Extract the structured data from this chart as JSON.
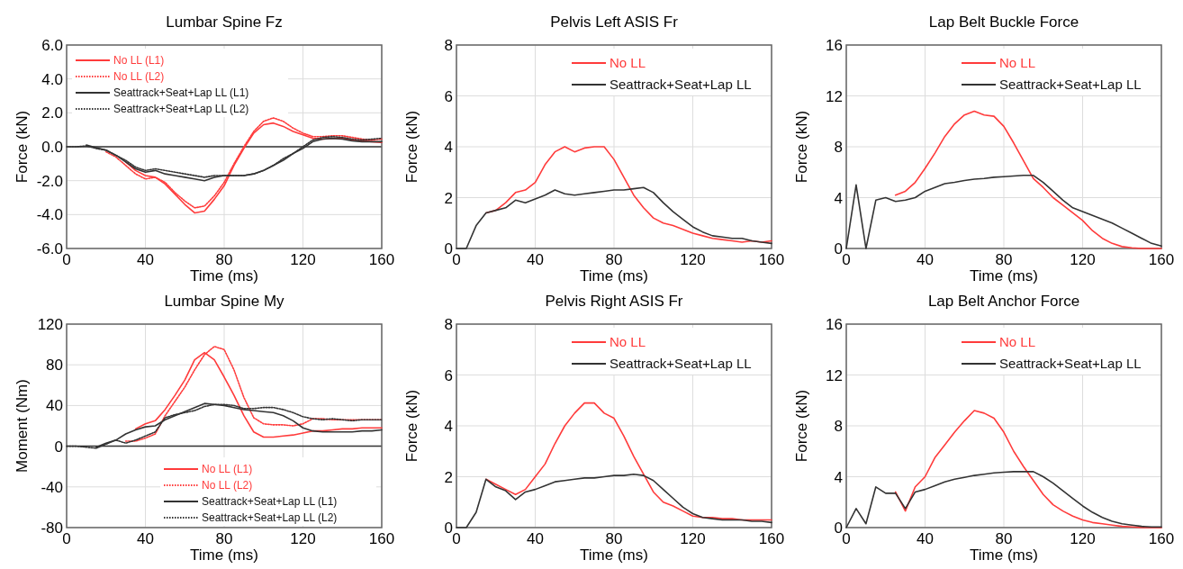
{
  "chart_data": [
    {
      "type": "line",
      "title": "Lumbar Spine Fz",
      "xlabel": "Time (ms)",
      "ylabel": "Force (kN)",
      "x": [
        0,
        5,
        10,
        15,
        20,
        25,
        30,
        35,
        40,
        45,
        50,
        55,
        60,
        65,
        70,
        75,
        80,
        85,
        90,
        95,
        100,
        105,
        110,
        115,
        120,
        125,
        130,
        135,
        140,
        145,
        150,
        155,
        160
      ],
      "xlim": [
        0,
        160
      ],
      "xticks": [
        0,
        40,
        80,
        120,
        160
      ],
      "ylim": [
        -6,
        6
      ],
      "yticks": [
        {
          "value": -6,
          "label": "-6.0"
        },
        {
          "value": -4,
          "label": "-4.0"
        },
        {
          "value": -2,
          "label": "-2.0"
        },
        {
          "value": 0,
          "label": "0.0"
        },
        {
          "value": 2,
          "label": "2.0"
        },
        {
          "value": 4,
          "label": "4.0"
        },
        {
          "value": 6,
          "label": "6.0"
        }
      ],
      "grid": true,
      "legend": "top left",
      "ref_lines": [
        {
          "axis": "y",
          "value": 0,
          "color": "#333333"
        }
      ],
      "series": [
        {
          "name": "No LL (L1)",
          "color": "#ff3b3b",
          "line_style": "solid",
          "values": [
            null,
            null,
            null,
            null,
            null,
            null,
            -0.9,
            -1.4,
            -1.7,
            -1.8,
            -2.2,
            -2.8,
            -3.4,
            -3.9,
            -3.8,
            -3.1,
            -2.3,
            -1.1,
            -0.1,
            0.8,
            1.3,
            1.4,
            1.2,
            0.9,
            0.7,
            0.5,
            0.45,
            0.5,
            0.5,
            0.4,
            0.35,
            0.3,
            0.25
          ]
        },
        {
          "name": "No LL (L2)",
          "color": "#ff3b3b",
          "line_style": "dotted",
          "values": [
            null,
            null,
            null,
            null,
            -0.3,
            -0.6,
            -1.1,
            -1.6,
            -1.9,
            -1.8,
            -2.1,
            -2.7,
            -3.2,
            -3.6,
            -3.5,
            -2.9,
            -2.1,
            -1,
            0,
            0.9,
            1.5,
            1.7,
            1.5,
            1.1,
            0.8,
            0.6,
            0.6,
            0.65,
            0.65,
            0.55,
            0.45,
            0.4,
            0.45
          ]
        },
        {
          "name": "Seattrack+Seat+Lap LL (L1)",
          "color": "#333333",
          "line_style": "solid",
          "values": [
            null,
            null,
            0.1,
            -0.05,
            -0.2,
            -0.5,
            -0.9,
            -1.3,
            -1.5,
            -1.4,
            -1.6,
            -1.7,
            -1.8,
            -1.9,
            -2,
            -1.8,
            -1.7,
            -1.7,
            -1.7,
            -1.6,
            -1.4,
            -1.1,
            -0.8,
            -0.4,
            -0.1,
            0.3,
            0.45,
            0.5,
            0.45,
            0.35,
            0.3,
            0.3,
            0.3
          ]
        },
        {
          "name": "Seattrack+Seat+Lap LL (L2)",
          "color": "#333333",
          "line_style": "dotted",
          "values": [
            0,
            0,
            0.05,
            -0.1,
            -0.2,
            -0.5,
            -0.8,
            -1.2,
            -1.4,
            -1.3,
            -1.4,
            -1.5,
            -1.6,
            -1.7,
            -1.8,
            -1.7,
            -1.7,
            -1.7,
            -1.7,
            -1.6,
            -1.4,
            -1.1,
            -0.7,
            -0.4,
            0,
            0.4,
            0.55,
            0.6,
            0.55,
            0.45,
            0.4,
            0.45,
            0.5
          ]
        }
      ]
    },
    {
      "type": "line",
      "title": "Pelvis Left ASIS Fr",
      "xlabel": "Time (ms)",
      "ylabel": "Force (kN)",
      "x": [
        0,
        5,
        10,
        15,
        20,
        25,
        30,
        35,
        40,
        45,
        50,
        55,
        60,
        65,
        70,
        75,
        80,
        85,
        90,
        95,
        100,
        105,
        110,
        115,
        120,
        125,
        130,
        135,
        140,
        145,
        150,
        155,
        160
      ],
      "xlim": [
        0,
        160
      ],
      "xticks": [
        0,
        40,
        80,
        120,
        160
      ],
      "ylim": [
        0,
        8
      ],
      "yticks": [
        0,
        2,
        4,
        6,
        8
      ],
      "grid": true,
      "legend": "top right",
      "series": [
        {
          "name": "No LL",
          "color": "#ff3b3b",
          "line_style": "solid",
          "values": [
            null,
            null,
            null,
            1.4,
            1.5,
            1.8,
            2.2,
            2.3,
            2.6,
            3.3,
            3.8,
            4,
            3.8,
            3.95,
            4,
            4,
            3.5,
            2.8,
            2.1,
            1.6,
            1.2,
            1,
            0.9,
            0.75,
            0.6,
            0.5,
            0.4,
            0.35,
            0.3,
            0.25,
            0.3,
            0.25,
            0.3
          ]
        },
        {
          "name": "Seattrack+Seat+Lap LL",
          "color": "#333333",
          "line_style": "solid",
          "values": [
            0,
            0,
            0.9,
            1.4,
            1.5,
            1.6,
            1.9,
            1.8,
            1.95,
            2.1,
            2.3,
            2.15,
            2.1,
            2.15,
            2.2,
            2.25,
            2.3,
            2.3,
            2.35,
            2.4,
            2.2,
            1.8,
            1.45,
            1.15,
            0.85,
            0.65,
            0.5,
            0.45,
            0.4,
            0.4,
            0.3,
            0.25,
            0.2
          ]
        }
      ]
    },
    {
      "type": "line",
      "title": "Lap Belt Buckle Force",
      "xlabel": "Time (ms)",
      "ylabel": "Force (kN)",
      "x": [
        0,
        5,
        10,
        15,
        20,
        25,
        30,
        35,
        40,
        45,
        50,
        55,
        60,
        65,
        70,
        75,
        80,
        85,
        90,
        95,
        100,
        105,
        110,
        115,
        120,
        125,
        130,
        135,
        140,
        145,
        150,
        155,
        160
      ],
      "xlim": [
        0,
        160
      ],
      "xticks": [
        0,
        40,
        80,
        120,
        160
      ],
      "ylim": [
        0,
        16
      ],
      "yticks": [
        0,
        4,
        8,
        12,
        16
      ],
      "grid": true,
      "legend": "top right",
      "series": [
        {
          "name": "No LL",
          "color": "#ff3b3b",
          "line_style": "solid",
          "values": [
            null,
            null,
            null,
            null,
            null,
            4.2,
            4.5,
            5.2,
            6.3,
            7.5,
            8.8,
            9.8,
            10.5,
            10.8,
            10.5,
            10.4,
            9.6,
            8.3,
            6.9,
            5.5,
            4.8,
            4,
            3.4,
            2.8,
            2.2,
            1.4,
            0.8,
            0.4,
            0.15,
            0.05,
            0,
            0,
            0
          ]
        },
        {
          "name": "Seattrack+Seat+Lap LL",
          "color": "#333333",
          "line_style": "solid",
          "values": [
            0,
            5,
            0,
            3.8,
            4,
            3.7,
            3.8,
            4,
            4.5,
            4.8,
            5.1,
            5.2,
            5.35,
            5.45,
            5.5,
            5.6,
            5.65,
            5.7,
            5.75,
            5.75,
            5.2,
            4.5,
            3.8,
            3.2,
            2.9,
            2.6,
            2.3,
            2,
            1.6,
            1.2,
            0.8,
            0.4,
            0.2
          ]
        }
      ]
    },
    {
      "type": "line",
      "title": "Lumbar Spine My",
      "xlabel": "Time (ms)",
      "ylabel": "Moment (Nm)",
      "x": [
        0,
        5,
        10,
        15,
        20,
        25,
        30,
        35,
        40,
        45,
        50,
        55,
        60,
        65,
        70,
        75,
        80,
        85,
        90,
        95,
        100,
        105,
        110,
        115,
        120,
        125,
        130,
        135,
        140,
        145,
        150,
        155,
        160
      ],
      "xlim": [
        0,
        160
      ],
      "xticks": [
        0,
        40,
        80,
        120,
        160
      ],
      "ylim": [
        -80,
        120
      ],
      "yticks": [
        -80,
        -40,
        0,
        40,
        80,
        120
      ],
      "grid": true,
      "legend": "bottom right",
      "ref_lines": [
        {
          "axis": "y",
          "value": 0,
          "color": "#333333"
        }
      ],
      "series": [
        {
          "name": "No LL (L1)",
          "color": "#ff3b3b",
          "line_style": "solid",
          "values": [
            null,
            null,
            null,
            null,
            null,
            null,
            null,
            17,
            22,
            25,
            36,
            50,
            65,
            85,
            92,
            85,
            68,
            50,
            30,
            14,
            9,
            9,
            10,
            11,
            13,
            15,
            15,
            16,
            17,
            17,
            18,
            18,
            18
          ]
        },
        {
          "name": "No LL (L2)",
          "color": "#ff3b3b",
          "line_style": "dotted",
          "values": [
            null,
            null,
            null,
            null,
            null,
            null,
            5,
            5,
            8,
            12,
            30,
            44,
            58,
            75,
            90,
            98,
            95,
            75,
            48,
            28,
            22,
            21,
            21,
            20,
            22,
            27,
            27,
            26,
            26,
            26,
            26,
            26,
            26
          ]
        },
        {
          "name": "Seattrack+Seat+Lap LL (L1)",
          "color": "#333333",
          "line_style": "solid",
          "values": [
            null,
            null,
            null,
            -1,
            3,
            6,
            12,
            16,
            19,
            20,
            26,
            30,
            34,
            38,
            42,
            41,
            40,
            38,
            36,
            35,
            34,
            33,
            30,
            25,
            18,
            15,
            14,
            14,
            14,
            14,
            15,
            15,
            16
          ]
        },
        {
          "name": "Seattrack+Seat+Lap LL (L2)",
          "color": "#333333",
          "line_style": "dotted",
          "values": [
            0,
            0,
            -1,
            -2,
            2,
            6,
            3,
            6,
            10,
            14,
            28,
            31,
            33,
            35,
            39,
            41,
            41,
            40,
            37,
            37,
            38,
            38,
            36,
            33,
            29,
            27,
            26,
            27,
            26,
            25,
            26,
            26,
            26
          ]
        }
      ]
    },
    {
      "type": "line",
      "title": "Pelvis Right ASIS Fr",
      "xlabel": "Time (ms)",
      "ylabel": "Force (kN)",
      "x": [
        0,
        5,
        10,
        15,
        20,
        25,
        30,
        35,
        40,
        45,
        50,
        55,
        60,
        65,
        70,
        75,
        80,
        85,
        90,
        95,
        100,
        105,
        110,
        115,
        120,
        125,
        130,
        135,
        140,
        145,
        150,
        155,
        160
      ],
      "xlim": [
        0,
        160
      ],
      "xticks": [
        0,
        40,
        80,
        120,
        160
      ],
      "ylim": [
        0,
        8
      ],
      "yticks": [
        0,
        2,
        4,
        6,
        8
      ],
      "grid": true,
      "legend": "top right",
      "series": [
        {
          "name": "No LL",
          "color": "#ff3b3b",
          "line_style": "solid",
          "values": [
            null,
            null,
            null,
            1.9,
            1.7,
            1.5,
            1.3,
            1.5,
            2,
            2.5,
            3.3,
            4,
            4.5,
            4.9,
            4.9,
            4.5,
            4.3,
            3.6,
            2.8,
            2.1,
            1.4,
            1,
            0.85,
            0.65,
            0.45,
            0.4,
            0.4,
            0.35,
            0.35,
            0.3,
            0.3,
            0.3,
            0.3
          ]
        },
        {
          "name": "Seattrack+Seat+Lap LL",
          "color": "#333333",
          "line_style": "solid",
          "values": [
            0,
            0,
            0.6,
            1.9,
            1.6,
            1.45,
            1.1,
            1.4,
            1.5,
            1.65,
            1.8,
            1.85,
            1.9,
            1.95,
            1.95,
            2,
            2.05,
            2.05,
            2.1,
            2.05,
            1.85,
            1.5,
            1.15,
            0.8,
            0.55,
            0.4,
            0.35,
            0.3,
            0.3,
            0.3,
            0.25,
            0.25,
            0.2
          ]
        }
      ]
    },
    {
      "type": "line",
      "title": "Lap Belt Anchor Force",
      "xlabel": "Time (ms)",
      "ylabel": "Force (kN)",
      "x": [
        0,
        5,
        10,
        15,
        20,
        25,
        30,
        35,
        40,
        45,
        50,
        55,
        60,
        65,
        70,
        75,
        80,
        85,
        90,
        95,
        100,
        105,
        110,
        115,
        120,
        125,
        130,
        135,
        140,
        145,
        150,
        155,
        160
      ],
      "xlim": [
        0,
        160
      ],
      "xticks": [
        0,
        40,
        80,
        120,
        160
      ],
      "ylim": [
        0,
        16
      ],
      "yticks": [
        0,
        4,
        8,
        12,
        16
      ],
      "grid": true,
      "legend": "top right",
      "series": [
        {
          "name": "No LL",
          "color": "#ff3b3b",
          "line_style": "solid",
          "values": [
            null,
            null,
            null,
            null,
            null,
            2.8,
            1.3,
            3.2,
            4,
            5.5,
            6.5,
            7.5,
            8.4,
            9.2,
            9,
            8.6,
            7.5,
            6,
            4.8,
            3.7,
            2.6,
            1.8,
            1.3,
            0.9,
            0.6,
            0.4,
            0.3,
            0.2,
            0.1,
            0.05,
            0,
            0,
            0
          ]
        },
        {
          "name": "Seattrack+Seat+Lap LL",
          "color": "#333333",
          "line_style": "solid",
          "values": [
            0,
            1.5,
            0.3,
            3.2,
            2.7,
            2.7,
            1.5,
            2.8,
            3,
            3.3,
            3.6,
            3.8,
            3.95,
            4.1,
            4.2,
            4.3,
            4.35,
            4.4,
            4.4,
            4.4,
            4,
            3.5,
            2.9,
            2.3,
            1.7,
            1.2,
            0.8,
            0.5,
            0.3,
            0.2,
            0.1,
            0.05,
            0.05
          ]
        }
      ]
    }
  ]
}
